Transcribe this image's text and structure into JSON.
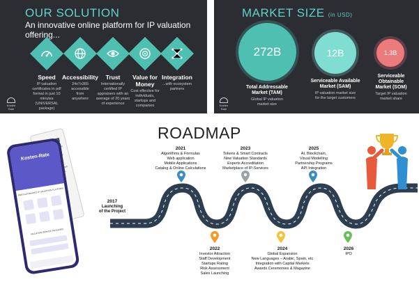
{
  "solution": {
    "title": "OUR SOLUTION",
    "subtitle_lines": [
      "An innovative online platform for IP valuation",
      "offering..."
    ],
    "features": [
      {
        "icon": "gauge-icon",
        "title": "Speed",
        "desc": [
          "IP valuation",
          "certificates in pdf",
          "format in just 10",
          "minutes",
          "(UNIVERSAL",
          "package)"
        ]
      },
      {
        "icon": "globe-icon",
        "title": "Accessibility",
        "desc": [
          "24x7x365",
          "accessible",
          "from",
          "anywhere"
        ]
      },
      {
        "icon": "eye-icon",
        "title": "Trust",
        "desc": [
          "Internationally",
          "certified IP",
          "appraisers with an",
          "average of 20 years",
          "of experience"
        ]
      },
      {
        "icon": "money-target-icon",
        "title_lines": [
          "Value for",
          "Money"
        ],
        "desc": [
          "Cost effective for",
          "individuals,",
          "startups and",
          "companies"
        ]
      },
      {
        "icon": "network-icon",
        "title": "Integration",
        "desc": [
          "...with ecosystem",
          "partners"
        ]
      }
    ],
    "logo_text": "Kosten Rate"
  },
  "market": {
    "title": "MARKET SIZE",
    "unit": "(in USD)",
    "items": [
      {
        "value": "272B",
        "label_lines": [
          "Total Addressable",
          "Market (TAM)"
        ],
        "desc": [
          "Global IP valuation",
          "market size"
        ],
        "color": "#4fbfb2"
      },
      {
        "value": "12B",
        "label_lines": [
          "Serviceable Available",
          "Market (SAM)"
        ],
        "desc": [
          "IP valuation market size",
          "for the target customers"
        ],
        "color": "#7fded1"
      },
      {
        "value": "1.3B",
        "label_lines": [
          "Serviceable",
          "Obtainable",
          "Market (SOM)"
        ],
        "desc": [
          "Target IP valuation",
          "market share"
        ],
        "color": "#ee7b7b"
      }
    ],
    "logo_text": "Kosten Rate"
  },
  "roadmap": {
    "title": "ROADMAP",
    "start": {
      "year": "2017",
      "lines": [
        "Launching",
        "of the Project"
      ]
    },
    "milestones": [
      {
        "year": "2021",
        "lines": [
          "Algorithms & Formulas",
          "Web application",
          "Mobile Applications",
          "Catalog & Online Calculations"
        ],
        "color": "#3a8dc4"
      },
      {
        "year": "2022",
        "lines": [
          "Investor Attraction",
          "Staff Development",
          "Startups Rating",
          "Risk Assessment",
          "Sales Launching"
        ],
        "color": "#f39a2b"
      },
      {
        "year": "2023",
        "lines": [
          "Tokens & Smart Contracts",
          "New Valuation Standards",
          "Experts Accreditation",
          "Marketplace of IP-Services"
        ],
        "color": "#9aa0a6"
      },
      {
        "year": "2024",
        "lines": [
          "Global Expansion",
          "New Languages – Arabic, Spain, etc",
          "Integration with Capital Markets",
          "Awards Ceremonies & Magazine"
        ],
        "color": "#f3c33b"
      },
      {
        "year": "2025",
        "lines": [
          "AI, Blockchain,",
          "Visual Modelling",
          "Partnership Programs",
          "API Integration"
        ],
        "color": "#3a8dc4"
      },
      {
        "year": "2026",
        "lines": [
          "IPO"
        ],
        "color": "#6bbf59"
      }
    ]
  },
  "phone": {
    "brand": "Kosten-Rate",
    "headline": "FIRST AUTOMATED IP VALUATION PLATFORM",
    "section": "VALUATION SERVICE PACKAGES"
  }
}
